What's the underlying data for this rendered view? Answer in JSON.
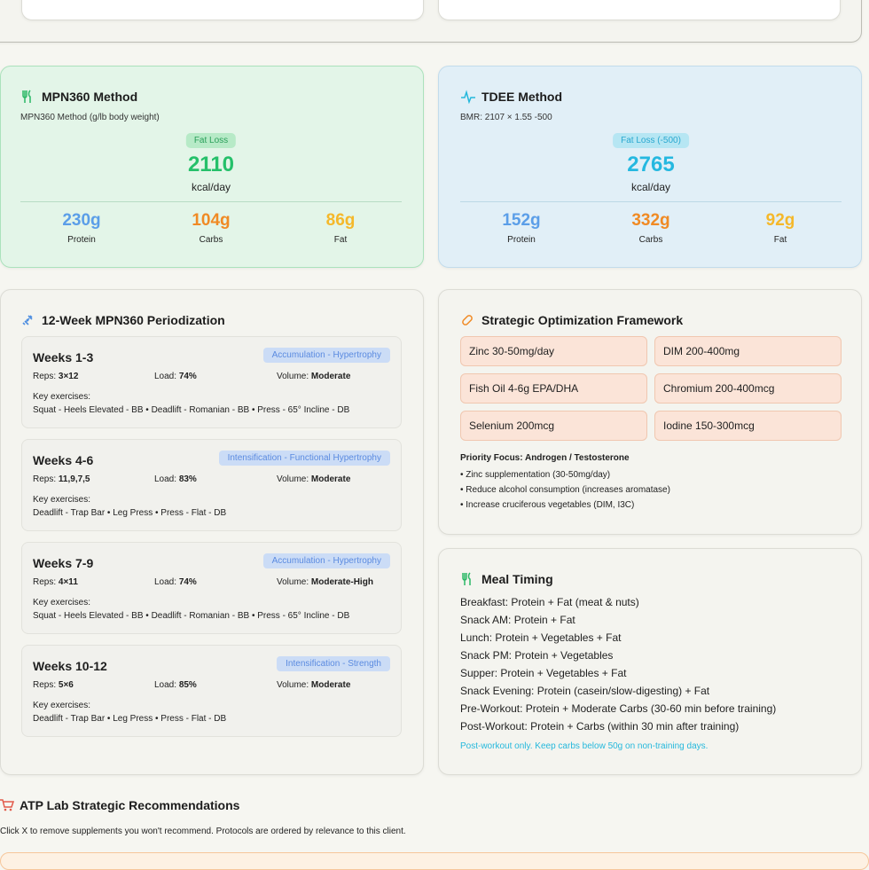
{
  "mpn": {
    "title": "MPN360 Method",
    "subtitle": "MPN360 Method (g/lb body weight)",
    "badge": "Fat Loss",
    "calories": "2110",
    "unit": "kcal/day",
    "macros": [
      {
        "value": "230g",
        "label": "Protein"
      },
      {
        "value": "104g",
        "label": "Carbs"
      },
      {
        "value": "86g",
        "label": "Fat"
      }
    ]
  },
  "tdee": {
    "title": "TDEE Method",
    "subtitle": "BMR: 2107 × 1.55 -500",
    "badge": "Fat Loss (-500)",
    "calories": "2765",
    "unit": "kcal/day",
    "macros": [
      {
        "value": "152g",
        "label": "Protein"
      },
      {
        "value": "332g",
        "label": "Carbs"
      },
      {
        "value": "92g",
        "label": "Fat"
      }
    ]
  },
  "periodization": {
    "title": "12-Week MPN360 Periodization",
    "labels": {
      "reps": "Reps:",
      "load": "Load:",
      "volume": "Volume:",
      "key": "Key exercises:"
    },
    "weeks": [
      {
        "title": "Weeks 1-3",
        "phase": "Accumulation - Hypertrophy",
        "reps": "3×12",
        "load": "74%",
        "volume": "Moderate",
        "exercises": "Squat - Heels Elevated - BB • Deadlift - Romanian - BB • Press - 65° Incline - DB"
      },
      {
        "title": "Weeks 4-6",
        "phase": "Intensification - Functional Hypertrophy",
        "reps": "11,9,7,5",
        "load": "83%",
        "volume": "Moderate",
        "exercises": "Deadlift - Trap Bar • Leg Press • Press - Flat - DB"
      },
      {
        "title": "Weeks 7-9",
        "phase": "Accumulation - Hypertrophy",
        "reps": "4×11",
        "load": "74%",
        "volume": "Moderate-High",
        "exercises": "Squat - Heels Elevated - BB • Deadlift - Romanian - BB • Press - 65° Incline - DB"
      },
      {
        "title": "Weeks 10-12",
        "phase": "Intensification - Strength",
        "reps": "5×6",
        "load": "85%",
        "volume": "Moderate",
        "exercises": "Deadlift - Trap Bar • Leg Press • Press - Flat - DB"
      }
    ]
  },
  "strategic": {
    "title": "Strategic Optimization Framework",
    "supplements": [
      "Zinc 30-50mg/day",
      "DIM 200-400mg",
      "Fish Oil 4-6g EPA/DHA",
      "Chromium 200-400mcg",
      "Selenium 200mcg",
      "Iodine 150-300mcg"
    ],
    "priority": "Priority Focus: Androgen / Testosterone",
    "bullets": [
      "• Zinc supplementation (30-50mg/day)",
      "• Reduce alcohol consumption (increases aromatase)",
      "• Increase cruciferous vegetables (DIM, I3C)"
    ]
  },
  "meal": {
    "title": "Meal Timing",
    "items": [
      "Breakfast: Protein + Fat (meat & nuts)",
      "Snack AM: Protein + Fat",
      "Lunch: Protein + Vegetables + Fat",
      "Snack PM: Protein + Vegetables",
      "Supper: Protein + Vegetables + Fat",
      "Snack Evening: Protein (casein/slow-digesting) + Fat",
      "Pre-Workout: Protein + Moderate Carbs (30-60 min before training)",
      "Post-Workout: Protein + Carbs (within 30 min after training)"
    ],
    "note": "Post-workout only. Keep carbs below 50g on non-training days."
  },
  "atp": {
    "title": "ATP Lab Strategic Recommendations",
    "note": "Click X to remove supplements you won't recommend. Protocols are ordered by relevance to this client."
  }
}
